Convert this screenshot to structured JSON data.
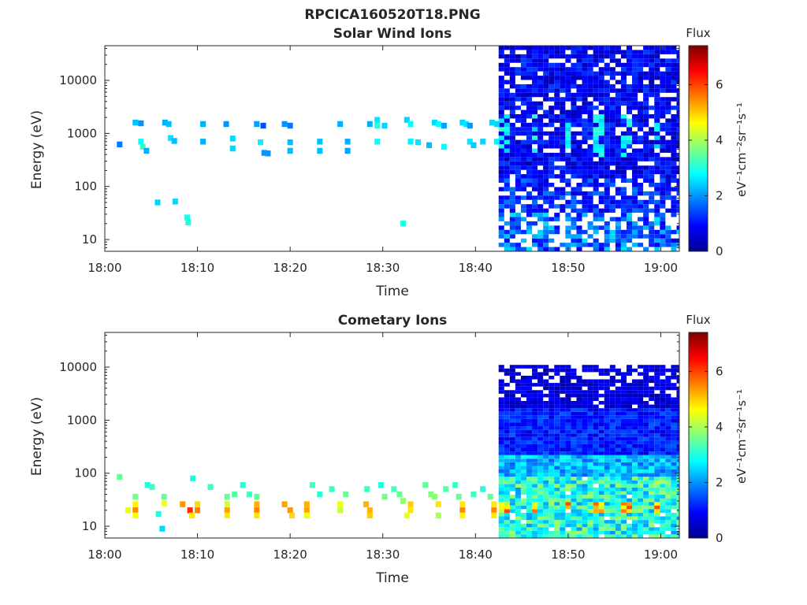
{
  "figure_title": "RPCICA160520T18.PNG",
  "colormap": [
    "#00008f",
    "#0000ff",
    "#0080ff",
    "#00ffff",
    "#80ff80",
    "#ffff00",
    "#ff8000",
    "#ff0000",
    "#800000"
  ],
  "chart_data": [
    {
      "type": "heatmap",
      "title": "Solar Wind Ions",
      "xlabel": "Time",
      "ylabel": "Energy (eV)",
      "xlim": [
        "18:00",
        "19:02"
      ],
      "ylim": [
        6,
        45000
      ],
      "yscale": "log",
      "x_ticks": [
        "18:00",
        "18:10",
        "18:20",
        "18:30",
        "18:40",
        "18:50",
        "19:00"
      ],
      "y_ticks": [
        "10",
        "100",
        "1000",
        "10000"
      ],
      "colorbar": {
        "title": "Flux",
        "label": "eV⁻¹cm⁻²sr⁻¹s⁻¹",
        "range": [
          0,
          7.4
        ],
        "ticks": [
          "0",
          "2",
          "4",
          "6"
        ]
      },
      "dense_start": "18:42.5",
      "sparse_cells": [
        [
          1.3,
          620,
          1.8
        ],
        [
          3.0,
          1600,
          2.3
        ],
        [
          3.6,
          1550,
          2.0
        ],
        [
          3.6,
          700,
          2.8
        ],
        [
          3.8,
          560,
          3.2
        ],
        [
          4.2,
          470,
          2.2
        ],
        [
          5.4,
          50,
          2.5
        ],
        [
          6.2,
          1600,
          2.2
        ],
        [
          6.6,
          1500,
          2.3
        ],
        [
          6.8,
          820,
          2.6
        ],
        [
          7.2,
          720,
          2.3
        ],
        [
          7.3,
          52,
          2.5
        ],
        [
          8.6,
          26,
          2.9
        ],
        [
          8.7,
          21,
          3.0
        ],
        [
          10.3,
          1500,
          2.2
        ],
        [
          10.3,
          700,
          2.2
        ],
        [
          12.8,
          1500,
          2.0
        ],
        [
          13.5,
          800,
          2.5
        ],
        [
          13.5,
          520,
          2.5
        ],
        [
          16.1,
          1500,
          2.1
        ],
        [
          16.8,
          1400,
          1.5
        ],
        [
          16.5,
          680,
          2.7
        ],
        [
          16.9,
          430,
          2.0
        ],
        [
          17.3,
          420,
          2.0
        ],
        [
          19.1,
          1500,
          2.0
        ],
        [
          19.7,
          1400,
          1.8
        ],
        [
          19.7,
          680,
          2.3
        ],
        [
          19.7,
          470,
          2.3
        ],
        [
          22.9,
          700,
          2.3
        ],
        [
          22.9,
          470,
          2.3
        ],
        [
          25.1,
          1500,
          2.2
        ],
        [
          25.9,
          700,
          2.2
        ],
        [
          25.9,
          470,
          2.1
        ],
        [
          28.3,
          1500,
          2.2
        ],
        [
          29.1,
          1800,
          2.6
        ],
        [
          29.1,
          1400,
          3.0
        ],
        [
          29.1,
          700,
          2.8
        ],
        [
          29.9,
          1400,
          2.5
        ],
        [
          31.9,
          20,
          3.0
        ],
        [
          32.3,
          1800,
          2.5
        ],
        [
          32.7,
          1500,
          2.8
        ],
        [
          32.7,
          700,
          2.7
        ],
        [
          33.5,
          680,
          2.6
        ],
        [
          34.7,
          600,
          2.3
        ],
        [
          35.3,
          1600,
          2.5
        ],
        [
          35.7,
          1500,
          2.8
        ],
        [
          36.3,
          1400,
          2.1
        ],
        [
          36.3,
          560,
          2.8
        ],
        [
          38.3,
          1600,
          2.5
        ],
        [
          38.7,
          1500,
          2.6
        ],
        [
          39.1,
          1400,
          2.0
        ],
        [
          39.1,
          700,
          2.6
        ],
        [
          39.5,
          600,
          2.4
        ],
        [
          40.5,
          700,
          2.5
        ],
        [
          41.5,
          1600,
          2.5
        ],
        [
          42.0,
          1500,
          2.5
        ],
        [
          42.0,
          700,
          2.7
        ]
      ]
    },
    {
      "type": "heatmap",
      "title": "Cometary Ions",
      "xlabel": "Time",
      "ylabel": "Energy (eV)",
      "xlim": [
        "18:00",
        "19:02"
      ],
      "ylim": [
        6,
        45000
      ],
      "yscale": "log",
      "x_ticks": [
        "18:00",
        "18:10",
        "18:20",
        "18:30",
        "18:40",
        "18:50",
        "19:00"
      ],
      "y_ticks": [
        "10",
        "100",
        "1000",
        "10000"
      ],
      "colorbar": {
        "title": "Flux",
        "label": "eV⁻¹cm⁻²sr⁻¹s⁻¹",
        "range": [
          0,
          7.4
        ],
        "ticks": [
          "0",
          "2",
          "4",
          "6"
        ]
      },
      "dense_start": "18:42.5",
      "dense_top": 11000,
      "sparse_cells": [
        [
          1.3,
          85,
          3.5
        ],
        [
          3.0,
          36,
          3.6
        ],
        [
          3.0,
          26,
          4.7
        ],
        [
          3.0,
          20,
          5.5
        ],
        [
          3.0,
          16,
          4.6
        ],
        [
          2.2,
          20,
          4.5
        ],
        [
          4.3,
          60,
          3.0
        ],
        [
          4.8,
          55,
          3.2
        ],
        [
          5.5,
          17,
          3.0
        ],
        [
          5.9,
          9,
          2.5
        ],
        [
          6.1,
          36,
          3.5
        ],
        [
          6.1,
          27,
          4.5
        ],
        [
          8.1,
          26,
          5.4
        ],
        [
          8.9,
          20,
          6.2
        ],
        [
          9.1,
          16,
          4.8
        ],
        [
          9.7,
          26,
          4.9
        ],
        [
          9.7,
          20,
          5.5
        ],
        [
          9.2,
          80,
          3.0
        ],
        [
          11.1,
          55,
          3.2
        ],
        [
          12.9,
          36,
          3.5
        ],
        [
          12.9,
          26,
          4.3
        ],
        [
          12.9,
          20,
          5.3
        ],
        [
          12.9,
          16,
          4.8
        ],
        [
          13.7,
          40,
          3.4
        ],
        [
          14.6,
          60,
          3.1
        ],
        [
          15.3,
          40,
          3.2
        ],
        [
          16.1,
          36,
          3.5
        ],
        [
          16.1,
          26,
          5.2
        ],
        [
          16.1,
          20,
          5.5
        ],
        [
          16.1,
          16,
          4.8
        ],
        [
          19.1,
          26,
          5.3
        ],
        [
          19.7,
          20,
          5.4
        ],
        [
          19.9,
          16,
          4.9
        ],
        [
          21.5,
          26,
          5.2
        ],
        [
          21.5,
          20,
          5.3
        ],
        [
          21.5,
          16,
          4.5
        ],
        [
          22.1,
          60,
          3.3
        ],
        [
          22.9,
          40,
          3.1
        ],
        [
          24.2,
          50,
          3.2
        ],
        [
          25.1,
          26,
          4.5
        ],
        [
          25.1,
          20,
          4.2
        ],
        [
          25.7,
          40,
          3.5
        ],
        [
          27.9,
          26,
          5.2
        ],
        [
          28.3,
          20,
          5.2
        ],
        [
          28.3,
          16,
          5.0
        ],
        [
          28.0,
          50,
          3.2
        ],
        [
          29.5,
          60,
          3.0
        ],
        [
          29.9,
          36,
          3.6
        ],
        [
          30.9,
          50,
          3.3
        ],
        [
          31.5,
          40,
          3.5
        ],
        [
          31.9,
          30,
          3.8
        ],
        [
          32.7,
          26,
          5.0
        ],
        [
          32.7,
          20,
          4.8
        ],
        [
          32.3,
          16,
          4.5
        ],
        [
          34.3,
          60,
          3.5
        ],
        [
          34.9,
          40,
          3.7
        ],
        [
          35.3,
          36,
          3.8
        ],
        [
          35.7,
          26,
          4.8
        ],
        [
          35.7,
          16,
          4.0
        ],
        [
          36.5,
          50,
          3.4
        ],
        [
          37.5,
          60,
          3.2
        ],
        [
          37.9,
          36,
          3.5
        ],
        [
          38.3,
          26,
          4.8
        ],
        [
          38.3,
          20,
          5.5
        ],
        [
          38.3,
          16,
          4.7
        ],
        [
          39.5,
          40,
          3.2
        ],
        [
          40.5,
          50,
          3.0
        ],
        [
          41.3,
          36,
          3.5
        ],
        [
          41.7,
          26,
          4.8
        ],
        [
          41.7,
          20,
          5.5
        ],
        [
          41.7,
          16,
          4.8
        ]
      ]
    }
  ]
}
